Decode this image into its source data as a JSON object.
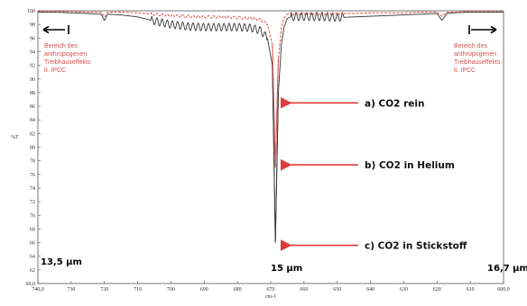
{
  "chart_data": {
    "type": "line",
    "xlabel": "cm-1",
    "ylabel": "%T",
    "xlim": [
      740,
      600
    ],
    "ylim": [
      60,
      100
    ],
    "x_ticks": [
      "740,0",
      "730",
      "720",
      "710",
      "700",
      "690",
      "680",
      "670",
      "660",
      "650",
      "640",
      "630",
      "620",
      "610",
      "600,0"
    ],
    "y_ticks": [
      "60,0",
      "62",
      "64",
      "66",
      "68",
      "70",
      "72",
      "74",
      "76",
      "78",
      "80",
      "82",
      "84",
      "86",
      "88",
      "90",
      "92",
      "94",
      "96",
      "98",
      "100"
    ],
    "series": [
      {
        "color": "#333333",
        "x": [
          740,
          735,
          730,
          725,
          721,
          720,
          719,
          715,
          710,
          705,
          700,
          695,
          690,
          685,
          680,
          676,
          673,
          671,
          669.5,
          668.6,
          667.7,
          666.8,
          666,
          665,
          664,
          662,
          660,
          655,
          650,
          645,
          640,
          635,
          630,
          625,
          620,
          618.5,
          617,
          615,
          610,
          605,
          600
        ],
        "y": [
          99.8,
          99.8,
          99.7,
          99.6,
          99.5,
          98.6,
          99.5,
          99.4,
          99.1,
          98.5,
          98.0,
          97.7,
          97.6,
          97.6,
          97.6,
          97.5,
          97.1,
          96.0,
          92.0,
          66.0,
          88.0,
          95.0,
          97.6,
          98.9,
          99.1,
          99.1,
          99.1,
          99.1,
          99.0,
          99.1,
          99.2,
          99.3,
          99.4,
          99.5,
          99.6,
          98.6,
          99.6,
          99.7,
          99.8,
          99.8,
          99.8
        ]
      },
      {
        "color": "#d9534f",
        "x": [
          740,
          735,
          730,
          725,
          721,
          720,
          719,
          715,
          710,
          705,
          700,
          695,
          690,
          685,
          680,
          676,
          673,
          671,
          669.5,
          668.6,
          667.7,
          666.8,
          666,
          665,
          664,
          662,
          660,
          655,
          650,
          645,
          640,
          635,
          630,
          625,
          620,
          618.5,
          617,
          615,
          610,
          605,
          600
        ],
        "y": [
          99.9,
          99.9,
          99.9,
          99.8,
          99.8,
          99.1,
          99.8,
          99.8,
          99.7,
          99.5,
          99.3,
          99.2,
          99.1,
          99.1,
          99.0,
          98.9,
          98.7,
          98.0,
          95.0,
          77.0,
          93.0,
          97.5,
          99.0,
          99.5,
          99.6,
          99.6,
          99.6,
          99.6,
          99.6,
          99.6,
          99.7,
          99.7,
          99.7,
          99.8,
          99.8,
          99.2,
          99.8,
          99.8,
          99.9,
          99.9,
          99.9
        ]
      }
    ],
    "notes": [
      {
        "lines": [
          "Bereich des",
          "anthropogenen",
          "Treibhauseffekts",
          "lt. IPCC"
        ],
        "position": "top-left"
      },
      {
        "lines": [
          "Bereich des",
          "anthropogenen",
          "Treibhauseffekts",
          "lt. IPCC"
        ],
        "position": "top-right"
      }
    ],
    "callouts": [
      {
        "label": "a) CO2 rein",
        "y": 86.5
      },
      {
        "label": "b) CO2 in Helium",
        "y": 77.4
      },
      {
        "label": "c) CO2 in Stickstoff",
        "y": 65.6
      }
    ],
    "wavelength_labels": {
      "left": "13,5 µm",
      "center": "15 µm",
      "right": "16,7 µm"
    },
    "grid": false,
    "legend": "none"
  }
}
